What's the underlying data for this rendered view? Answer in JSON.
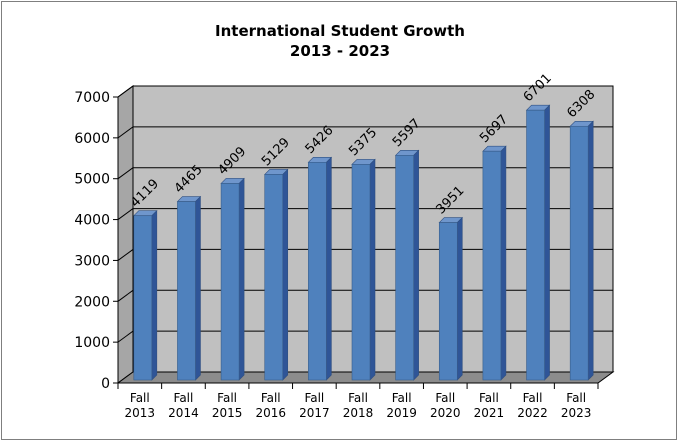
{
  "chart_data": {
    "type": "bar",
    "title_line1": "International Student Growth",
    "title_line2": "2013 - 2023",
    "categories": [
      [
        "Fall",
        "2013"
      ],
      [
        "Fall",
        "2014"
      ],
      [
        "Fall",
        "2015"
      ],
      [
        "Fall",
        "2016"
      ],
      [
        "Fall",
        "2017"
      ],
      [
        "Fall",
        "2018"
      ],
      [
        "Fall",
        "2019"
      ],
      [
        "Fall",
        "2020"
      ],
      [
        "Fall",
        "2021"
      ],
      [
        "Fall",
        "2022"
      ],
      [
        "Fall",
        "2023"
      ]
    ],
    "values": [
      4119,
      4465,
      4909,
      5129,
      5426,
      5375,
      5597,
      3951,
      5697,
      6701,
      6308
    ],
    "ylim": [
      0,
      7000
    ],
    "yticks": [
      0,
      1000,
      2000,
      3000,
      4000,
      5000,
      6000,
      7000
    ],
    "grid": true,
    "bar_color": "#4f81bd",
    "plot_background": "#c0c0c0"
  }
}
